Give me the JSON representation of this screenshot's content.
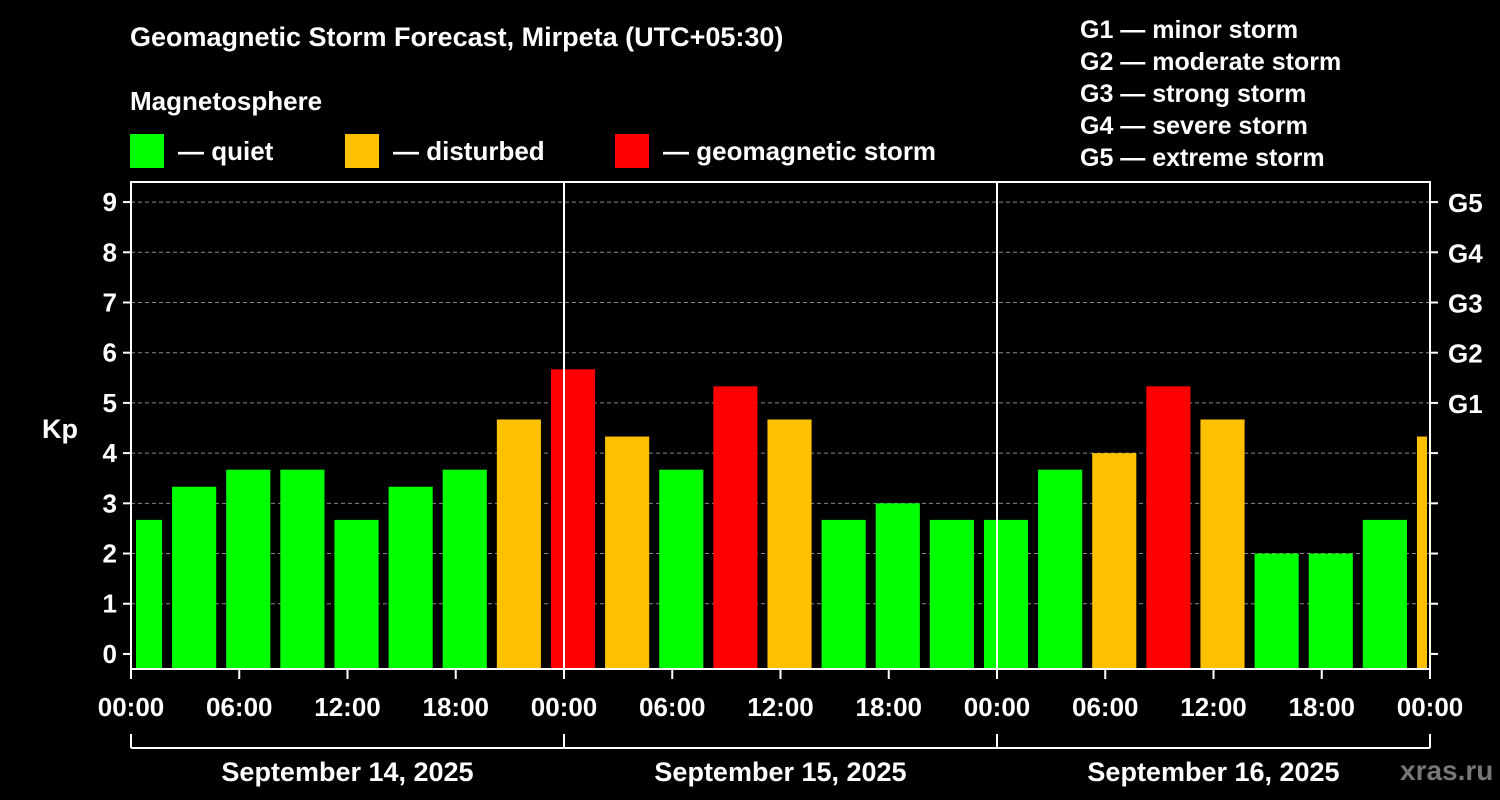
{
  "colors": {
    "quiet": "#00ff00",
    "disturbed": "#ffc000",
    "storm": "#ff0000",
    "grid": "#888888",
    "axis": "#ffffff"
  },
  "header": {
    "title": "Geomagnetic Storm Forecast, Mirpeta (UTC+05:30)",
    "subtitle": "Magnetosphere"
  },
  "legend": [
    {
      "key": "quiet",
      "label": "— quiet"
    },
    {
      "key": "disturbed",
      "label": "— disturbed"
    },
    {
      "key": "storm",
      "label": "— geomagnetic storm"
    }
  ],
  "g_scale": [
    "G1 — minor storm",
    "G2 — moderate storm",
    "G3 — strong storm",
    "G4 — severe storm",
    "G5 — extreme storm"
  ],
  "watermark": "xras.ru",
  "chart_data": {
    "type": "bar",
    "title": "Geomagnetic Storm Forecast, Mirpeta (UTC+05:30)",
    "ylabel": "Kp",
    "ylim": [
      -0.3,
      9.4
    ],
    "yticks": [
      0,
      1,
      2,
      3,
      4,
      5,
      6,
      7,
      8,
      9
    ],
    "right_ticks": [
      {
        "value": 5,
        "label": "G1"
      },
      {
        "value": 6,
        "label": "G2"
      },
      {
        "value": 7,
        "label": "G3"
      },
      {
        "value": 8,
        "label": "G4"
      },
      {
        "value": 9,
        "label": "G5"
      }
    ],
    "x_unit": "hours",
    "xlim": [
      0,
      72
    ],
    "x_ticks": [
      {
        "value": 0,
        "label": "00:00"
      },
      {
        "value": 6,
        "label": "06:00"
      },
      {
        "value": 12,
        "label": "12:00"
      },
      {
        "value": 18,
        "label": "18:00"
      },
      {
        "value": 24,
        "label": "00:00"
      },
      {
        "value": 30,
        "label": "06:00"
      },
      {
        "value": 36,
        "label": "12:00"
      },
      {
        "value": 42,
        "label": "18:00"
      },
      {
        "value": 48,
        "label": "00:00"
      },
      {
        "value": 54,
        "label": "06:00"
      },
      {
        "value": 60,
        "label": "12:00"
      },
      {
        "value": 66,
        "label": "18:00"
      },
      {
        "value": 72,
        "label": "00:00"
      }
    ],
    "day_dividers": [
      24,
      48
    ],
    "days": [
      {
        "label": "September 14, 2025",
        "start": 0,
        "end": 24
      },
      {
        "label": "September 15, 2025",
        "start": 24,
        "end": 48
      },
      {
        "label": "September 16, 2025",
        "start": 48,
        "end": 72
      }
    ],
    "bars": [
      {
        "start": 0,
        "end": 2,
        "value": 2.67,
        "level": "quiet"
      },
      {
        "start": 2,
        "end": 5,
        "value": 3.33,
        "level": "quiet"
      },
      {
        "start": 5,
        "end": 8,
        "value": 3.67,
        "level": "quiet"
      },
      {
        "start": 8,
        "end": 11,
        "value": 3.67,
        "level": "quiet"
      },
      {
        "start": 11,
        "end": 14,
        "value": 2.67,
        "level": "quiet"
      },
      {
        "start": 14,
        "end": 17,
        "value": 3.33,
        "level": "quiet"
      },
      {
        "start": 17,
        "end": 20,
        "value": 3.67,
        "level": "quiet"
      },
      {
        "start": 20,
        "end": 23,
        "value": 4.67,
        "level": "disturbed"
      },
      {
        "start": 23,
        "end": 26,
        "value": 5.67,
        "level": "storm"
      },
      {
        "start": 26,
        "end": 29,
        "value": 4.33,
        "level": "disturbed"
      },
      {
        "start": 29,
        "end": 32,
        "value": 3.67,
        "level": "quiet"
      },
      {
        "start": 32,
        "end": 35,
        "value": 5.33,
        "level": "storm"
      },
      {
        "start": 35,
        "end": 38,
        "value": 4.67,
        "level": "disturbed"
      },
      {
        "start": 38,
        "end": 41,
        "value": 2.67,
        "level": "quiet"
      },
      {
        "start": 41,
        "end": 44,
        "value": 3.0,
        "level": "quiet"
      },
      {
        "start": 44,
        "end": 47,
        "value": 2.67,
        "level": "quiet"
      },
      {
        "start": 47,
        "end": 50,
        "value": 2.67,
        "level": "quiet"
      },
      {
        "start": 50,
        "end": 53,
        "value": 3.67,
        "level": "quiet"
      },
      {
        "start": 53,
        "end": 56,
        "value": 4.0,
        "level": "disturbed"
      },
      {
        "start": 56,
        "end": 59,
        "value": 5.33,
        "level": "storm"
      },
      {
        "start": 59,
        "end": 62,
        "value": 4.67,
        "level": "disturbed"
      },
      {
        "start": 62,
        "end": 65,
        "value": 2.0,
        "level": "quiet"
      },
      {
        "start": 65,
        "end": 68,
        "value": 2.0,
        "level": "quiet"
      },
      {
        "start": 68,
        "end": 71,
        "value": 2.67,
        "level": "quiet"
      },
      {
        "start": 71,
        "end": 72,
        "value": 4.33,
        "level": "disturbed"
      }
    ]
  }
}
